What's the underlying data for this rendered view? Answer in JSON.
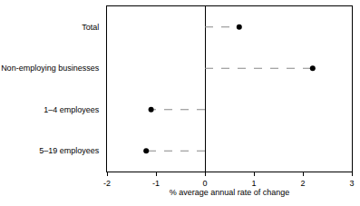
{
  "chart_data": {
    "type": "dot",
    "orientation": "horizontal",
    "categories": [
      "Total",
      "Non-employing businesses",
      "1–4 employees",
      "5–19 employees"
    ],
    "values": [
      0.7,
      2.2,
      -1.1,
      -1.2
    ],
    "color": "#000000",
    "marker": "circle",
    "line_style": "dashed",
    "x_label": "% average annual rate of change",
    "xlim": [
      -2,
      3
    ],
    "xticks": [
      -2,
      -1,
      0,
      1,
      2,
      3
    ],
    "grid": false
  }
}
